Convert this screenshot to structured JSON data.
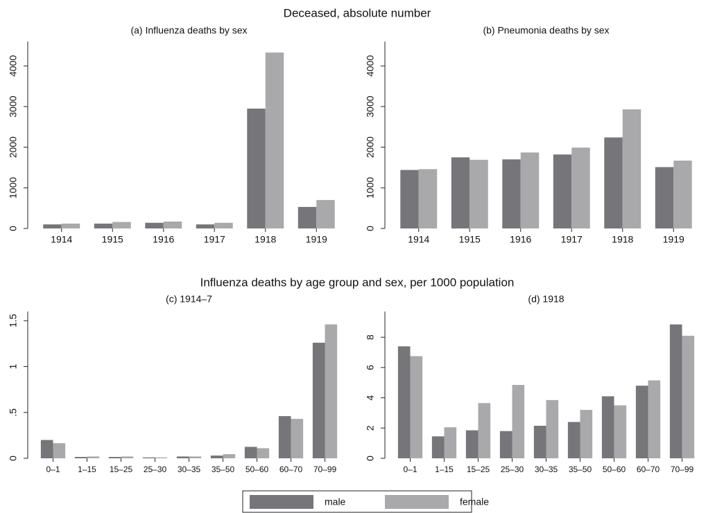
{
  "section_titles": [
    "Deceased, absolute number",
    "Influenza deaths by age group and sex, per 1000 population"
  ],
  "chart_data": [
    {
      "type": "bar",
      "title": "(a) Influenza deaths by sex",
      "categories": [
        "1914",
        "1915",
        "1916",
        "1917",
        "1918",
        "1919"
      ],
      "series": [
        {
          "name": "male",
          "color": "#76767a",
          "values": [
            100,
            120,
            140,
            100,
            2950,
            530
          ]
        },
        {
          "name": "female",
          "color": "#a9a9ab",
          "values": [
            120,
            160,
            170,
            140,
            4330,
            700
          ]
        }
      ],
      "ylim": [
        0,
        4600
      ],
      "yticks": [
        0,
        1000,
        2000,
        3000,
        4000
      ]
    },
    {
      "type": "bar",
      "title": "(b) Pneumonia deaths by sex",
      "categories": [
        "1914",
        "1915",
        "1916",
        "1917",
        "1918",
        "1919"
      ],
      "series": [
        {
          "name": "male",
          "color": "#76767a",
          "values": [
            1440,
            1750,
            1700,
            1820,
            2240,
            1510
          ]
        },
        {
          "name": "female",
          "color": "#a9a9ab",
          "values": [
            1460,
            1690,
            1870,
            1990,
            2930,
            1670
          ]
        }
      ],
      "ylim": [
        0,
        4600
      ],
      "yticks": [
        0,
        1000,
        2000,
        3000,
        4000
      ]
    },
    {
      "type": "bar",
      "title": "(c) 1914–7",
      "categories": [
        "0–1",
        "1–15",
        "15–25",
        "25–30",
        "30–35",
        "35–50",
        "50–60",
        "60–70",
        "70–99"
      ],
      "series": [
        {
          "name": "male",
          "color": "#76767a",
          "values": [
            0.2,
            0.015,
            0.015,
            0.01,
            0.02,
            0.03,
            0.125,
            0.46,
            1.26
          ]
        },
        {
          "name": "female",
          "color": "#a9a9ab",
          "values": [
            0.165,
            0.02,
            0.02,
            0.01,
            0.02,
            0.045,
            0.11,
            0.43,
            1.46
          ]
        }
      ],
      "ylim": [
        0,
        1.6
      ],
      "yticks": [
        0,
        {
          "value": 0.5,
          "label": ".5"
        },
        1,
        1.5
      ]
    },
    {
      "type": "bar",
      "title": "(d) 1918",
      "categories": [
        "0–1",
        "1–15",
        "15–25",
        "25–30",
        "30–35",
        "35–50",
        "50–60",
        "60–70",
        "70–99"
      ],
      "series": [
        {
          "name": "male",
          "color": "#76767a",
          "values": [
            7.4,
            1.45,
            1.85,
            1.8,
            2.15,
            2.4,
            4.1,
            4.8,
            8.85
          ]
        },
        {
          "name": "female",
          "color": "#a9a9ab",
          "values": [
            6.75,
            2.05,
            3.65,
            4.85,
            3.85,
            3.2,
            3.5,
            5.15,
            8.1
          ]
        }
      ],
      "ylim": [
        0,
        9.7
      ],
      "yticks": [
        0,
        2,
        4,
        6,
        8
      ]
    }
  ]
}
